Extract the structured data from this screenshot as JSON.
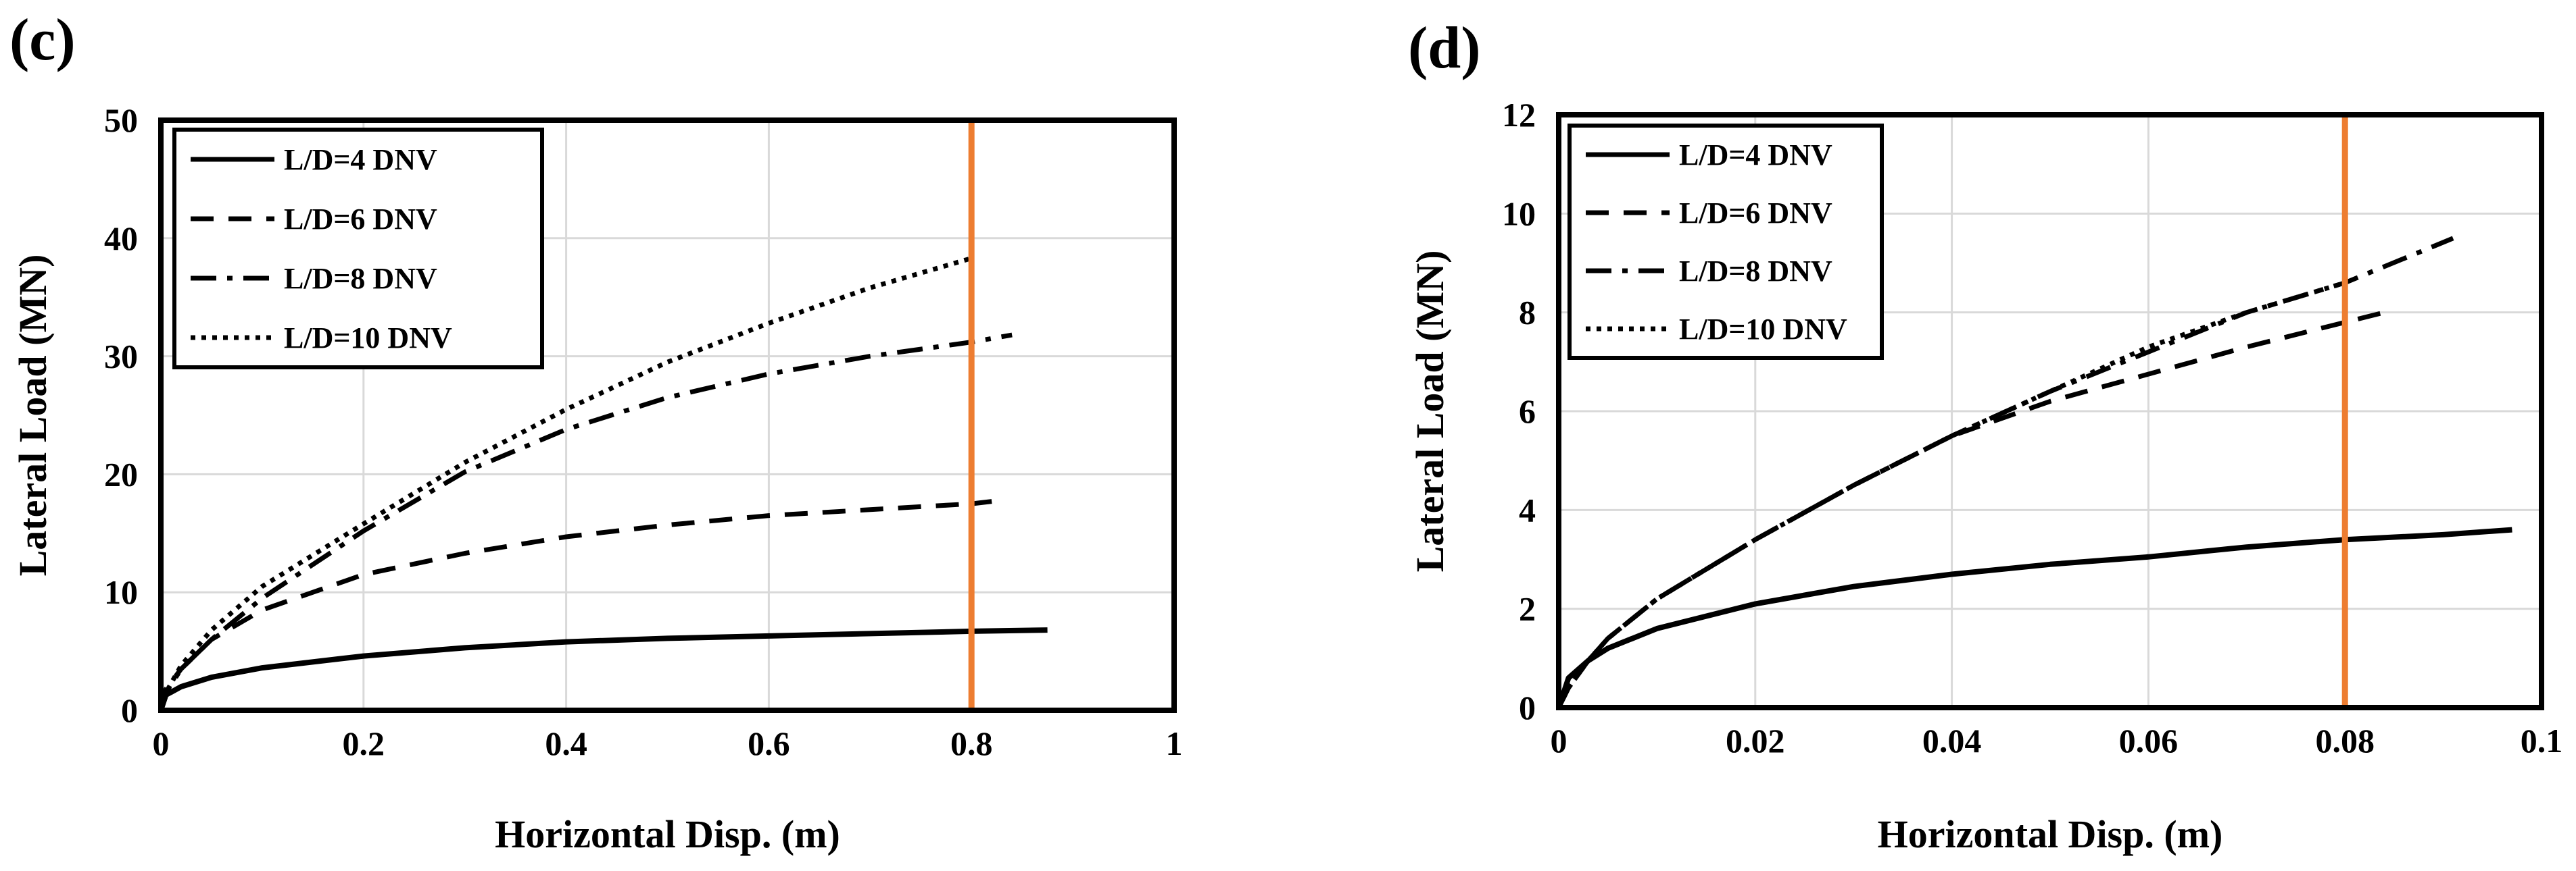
{
  "chart_data": [
    {
      "type": "line",
      "panel_label": "(c)",
      "xlabel": "Horizontal Disp. (m)",
      "ylabel": "Lateral Load (MN)",
      "xlim": [
        0,
        1
      ],
      "ylim": [
        0,
        50
      ],
      "xticks": [
        0,
        0.2,
        0.4,
        0.6,
        0.8,
        1
      ],
      "xtick_labels": [
        "0",
        "0.2",
        "0.4",
        "0.6",
        "0.8",
        "1"
      ],
      "yticks": [
        0,
        10,
        20,
        30,
        40,
        50
      ],
      "ytick_labels": [
        "0",
        "10",
        "20",
        "30",
        "40",
        "50"
      ],
      "grid": true,
      "legend_position": "top-left",
      "vertical_line": {
        "x": 0.8,
        "color": "#ED7D31"
      },
      "series": [
        {
          "name": "L/D=4 DNV",
          "style": "solid",
          "x": [
            0,
            0.005,
            0.02,
            0.05,
            0.1,
            0.2,
            0.3,
            0.4,
            0.5,
            0.6,
            0.7,
            0.8,
            0.875
          ],
          "y": [
            0,
            1.3,
            2.0,
            2.8,
            3.6,
            4.6,
            5.3,
            5.8,
            6.1,
            6.3,
            6.5,
            6.7,
            6.8
          ]
        },
        {
          "name": "L/D=6 DNV",
          "style": "dashed",
          "x": [
            0,
            0.005,
            0.02,
            0.05,
            0.1,
            0.2,
            0.3,
            0.4,
            0.5,
            0.6,
            0.7,
            0.8,
            0.82
          ],
          "y": [
            0,
            1.8,
            3.5,
            6.0,
            8.5,
            11.5,
            13.3,
            14.7,
            15.7,
            16.5,
            17.0,
            17.5,
            17.7
          ]
        },
        {
          "name": "L/D=8 DNV",
          "style": "dashdot",
          "x": [
            0,
            0.005,
            0.02,
            0.05,
            0.1,
            0.2,
            0.3,
            0.4,
            0.5,
            0.6,
            0.7,
            0.8,
            0.84
          ],
          "y": [
            0,
            1.5,
            3.5,
            6.0,
            9.5,
            15.2,
            20.2,
            23.8,
            26.5,
            28.5,
            30.0,
            31.2,
            31.8
          ]
        },
        {
          "name": "L/D=10 DNV",
          "style": "dotted",
          "x": [
            0,
            0.005,
            0.02,
            0.05,
            0.1,
            0.2,
            0.3,
            0.4,
            0.5,
            0.6,
            0.7,
            0.8
          ],
          "y": [
            0,
            1.5,
            3.8,
            6.8,
            10.5,
            15.8,
            21.0,
            25.5,
            29.5,
            32.8,
            35.8,
            38.3
          ]
        }
      ],
      "legend": [
        "L/D=4 DNV",
        "L/D=6 DNV",
        "L/D=8 DNV",
        "L/D=10 DNV"
      ]
    },
    {
      "type": "line",
      "panel_label": "(d)",
      "xlabel": "Horizontal Disp. (m)",
      "ylabel": "Lateral Load (MN)",
      "xlim": [
        0,
        0.1
      ],
      "ylim": [
        0,
        12
      ],
      "xticks": [
        0,
        0.02,
        0.04,
        0.06,
        0.08,
        0.1
      ],
      "xtick_labels": [
        "0",
        "0.02",
        "0.04",
        "0.06",
        "0.08",
        "0.1"
      ],
      "yticks": [
        0,
        2,
        4,
        6,
        8,
        10,
        12
      ],
      "ytick_labels": [
        "0",
        "2",
        "4",
        "6",
        "8",
        "10",
        "12"
      ],
      "grid": true,
      "legend_position": "top-left",
      "vertical_line": {
        "x": 0.08,
        "color": "#ED7D31"
      },
      "series": [
        {
          "name": "L/D=4 DNV",
          "style": "solid",
          "x": [
            0,
            0.001,
            0.003,
            0.005,
            0.01,
            0.02,
            0.03,
            0.04,
            0.05,
            0.06,
            0.07,
            0.08,
            0.09,
            0.097
          ],
          "y": [
            0,
            0.6,
            0.95,
            1.2,
            1.6,
            2.1,
            2.45,
            2.7,
            2.9,
            3.05,
            3.25,
            3.4,
            3.5,
            3.6
          ]
        },
        {
          "name": "L/D=6 DNV",
          "style": "dashed",
          "x": [
            0,
            0.001,
            0.003,
            0.005,
            0.01,
            0.02,
            0.03,
            0.04,
            0.05,
            0.06,
            0.07,
            0.08,
            0.084
          ],
          "y": [
            0,
            0.4,
            0.95,
            1.4,
            2.2,
            3.4,
            4.5,
            5.5,
            6.2,
            6.75,
            7.3,
            7.8,
            8.0
          ]
        },
        {
          "name": "L/D=8 DNV",
          "style": "dashdot",
          "x": [
            0,
            0.001,
            0.003,
            0.005,
            0.01,
            0.02,
            0.03,
            0.04,
            0.05,
            0.06,
            0.07,
            0.08,
            0.091
          ],
          "y": [
            0,
            0.4,
            0.95,
            1.4,
            2.2,
            3.4,
            4.5,
            5.5,
            6.4,
            7.2,
            8.0,
            8.6,
            9.5
          ]
        },
        {
          "name": "L/D=10 DNV",
          "style": "dotted",
          "x": [
            0,
            0.001,
            0.003,
            0.005,
            0.01,
            0.02,
            0.03,
            0.04,
            0.05,
            0.06,
            0.07,
            0.08
          ],
          "y": [
            0,
            0.4,
            0.95,
            1.4,
            2.2,
            3.4,
            4.5,
            5.5,
            6.4,
            7.3,
            8.0,
            8.6
          ]
        }
      ],
      "legend": [
        "L/D=4 DNV",
        "L/D=6 DNV",
        "L/D=8 DNV",
        "L/D=10 DNV"
      ]
    }
  ]
}
